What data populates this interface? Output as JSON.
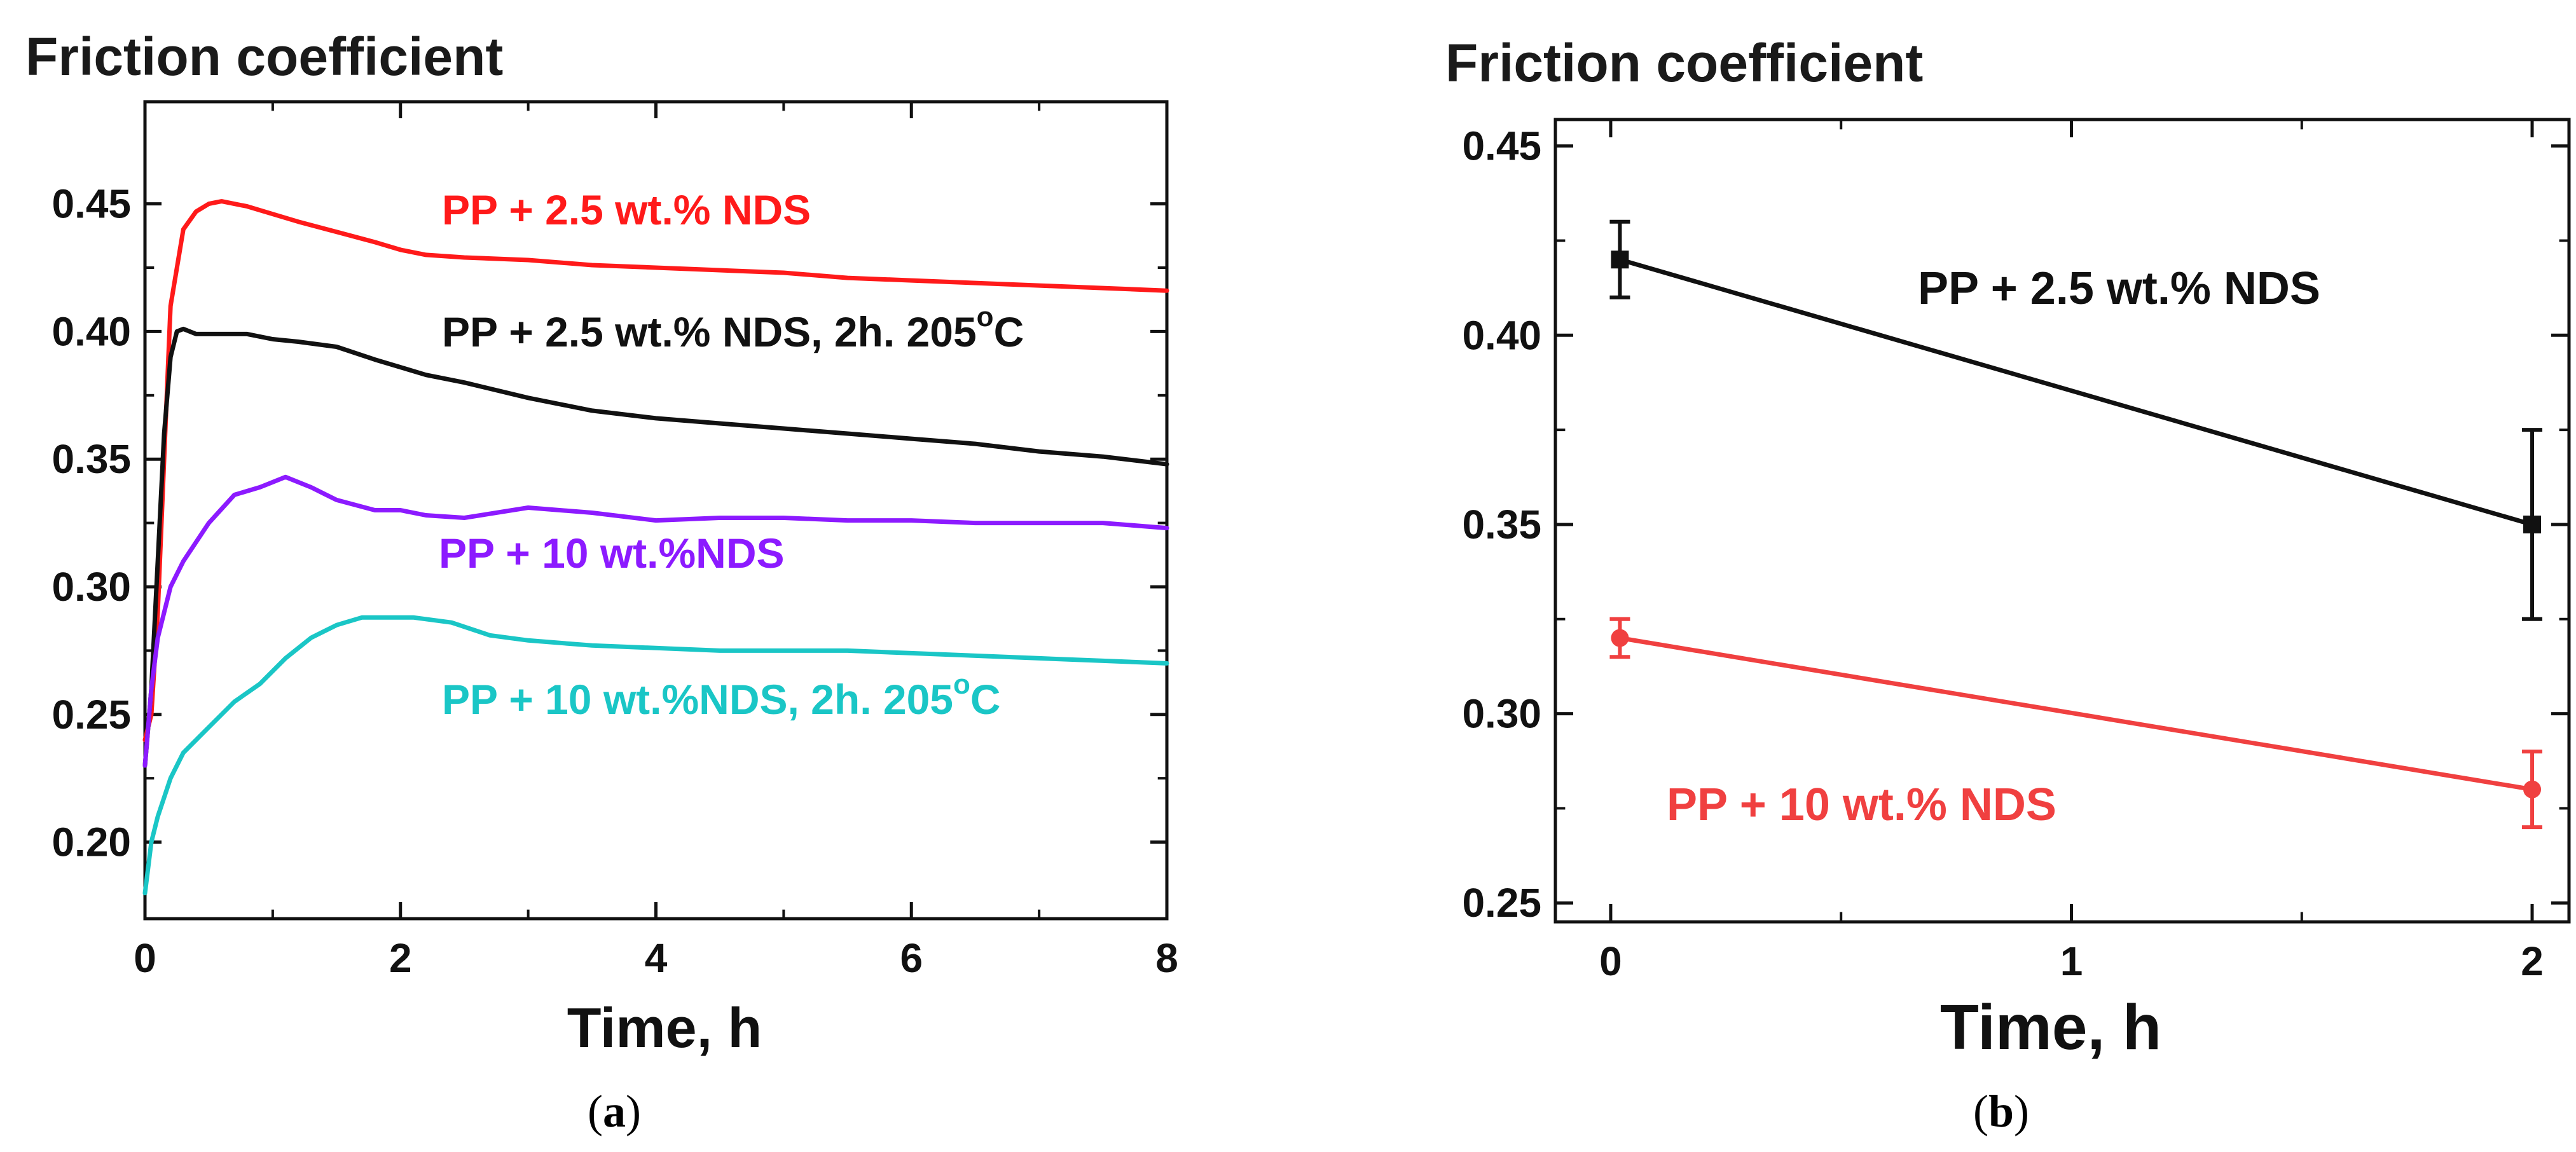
{
  "chart_data": [
    {
      "panel": "a",
      "type": "line",
      "title": "Friction coefficient",
      "ylabel": "",
      "xlabel": "Time, h",
      "xlim": [
        0,
        8
      ],
      "ylim": [
        0.17,
        0.49
      ],
      "xticks": [
        0,
        2,
        4,
        6,
        8
      ],
      "yticks": [
        0.2,
        0.25,
        0.3,
        0.35,
        0.4,
        0.45
      ],
      "ytick_labels": [
        "0.20",
        "0.25",
        "0.30",
        "0.35",
        "0.40",
        "0.45"
      ],
      "xtick_labels": [
        "0",
        "2",
        "4",
        "6",
        "8"
      ],
      "caption": "a",
      "series": [
        {
          "name": "PP + 2.5 wt.% NDS",
          "color": "#ff1a1a",
          "x": [
            0,
            0.05,
            0.1,
            0.15,
            0.2,
            0.3,
            0.4,
            0.5,
            0.6,
            0.8,
            1.0,
            1.2,
            1.5,
            1.8,
            2.0,
            2.2,
            2.5,
            3.0,
            3.5,
            4.0,
            4.5,
            5.0,
            5.5,
            6.0,
            6.5,
            7.0,
            7.5,
            8.0
          ],
          "y": [
            0.24,
            0.25,
            0.29,
            0.35,
            0.41,
            0.44,
            0.447,
            0.45,
            0.451,
            0.449,
            0.446,
            0.443,
            0.439,
            0.435,
            0.432,
            0.43,
            0.429,
            0.428,
            0.426,
            0.425,
            0.424,
            0.423,
            0.421,
            0.42,
            0.419,
            0.418,
            0.417,
            0.416
          ]
        },
        {
          "name": "PP + 2.5 wt.% NDS, 2h. 205°C",
          "color": "#111111",
          "x": [
            0,
            0.05,
            0.1,
            0.15,
            0.2,
            0.25,
            0.3,
            0.4,
            0.6,
            0.8,
            1.0,
            1.2,
            1.5,
            1.8,
            2.0,
            2.2,
            2.5,
            3.0,
            3.5,
            4.0,
            4.5,
            5.0,
            5.5,
            6.0,
            6.5,
            7.0,
            7.5,
            8.0
          ],
          "y": [
            0.23,
            0.26,
            0.31,
            0.36,
            0.39,
            0.4,
            0.401,
            0.399,
            0.399,
            0.399,
            0.397,
            0.396,
            0.394,
            0.389,
            0.386,
            0.383,
            0.38,
            0.374,
            0.369,
            0.366,
            0.364,
            0.362,
            0.36,
            0.358,
            0.356,
            0.353,
            0.351,
            0.348
          ]
        },
        {
          "name": "PP + 10 wt.%NDS",
          "color": "#8c1aff",
          "x": [
            0,
            0.05,
            0.1,
            0.2,
            0.3,
            0.5,
            0.7,
            0.9,
            1.1,
            1.3,
            1.5,
            1.8,
            2.0,
            2.2,
            2.5,
            3.0,
            3.5,
            4.0,
            4.5,
            5.0,
            5.5,
            6.0,
            6.5,
            7.0,
            7.5,
            8.0
          ],
          "y": [
            0.23,
            0.26,
            0.28,
            0.3,
            0.31,
            0.325,
            0.336,
            0.339,
            0.343,
            0.339,
            0.334,
            0.33,
            0.33,
            0.328,
            0.327,
            0.331,
            0.329,
            0.326,
            0.327,
            0.327,
            0.326,
            0.326,
            0.325,
            0.325,
            0.325,
            0.323
          ]
        },
        {
          "name": "PP + 10 wt.%NDS, 2h. 205°C",
          "color": "#1ac6c6",
          "x": [
            0,
            0.05,
            0.1,
            0.2,
            0.3,
            0.5,
            0.7,
            0.9,
            1.1,
            1.3,
            1.5,
            1.7,
            1.9,
            2.1,
            2.4,
            2.7,
            3.0,
            3.5,
            4.0,
            4.5,
            5.0,
            5.5,
            6.0,
            6.5,
            7.0,
            7.5,
            8.0
          ],
          "y": [
            0.18,
            0.2,
            0.21,
            0.225,
            0.235,
            0.245,
            0.255,
            0.262,
            0.272,
            0.28,
            0.285,
            0.288,
            0.288,
            0.288,
            0.286,
            0.281,
            0.279,
            0.277,
            0.276,
            0.275,
            0.275,
            0.275,
            0.274,
            0.273,
            0.272,
            0.271,
            0.27
          ]
        }
      ],
      "labels": [
        {
          "text": "PP + 2.5 wt.% NDS",
          "color": "#ff1a1a"
        },
        {
          "text": "PP + 2.5 wt.% NDS, 2h. 205",
          "sup": "o",
          "tail": "C",
          "color": "#111111"
        },
        {
          "text": "PP + 10 wt.%NDS",
          "color": "#8c1aff"
        },
        {
          "text": "PP + 10 wt.%NDS, 2h. 205",
          "sup": "o",
          "tail": "C",
          "color": "#1ac6c6"
        }
      ]
    },
    {
      "panel": "b",
      "type": "line",
      "title": "Friction coefficient",
      "ylabel": "",
      "xlabel": "Time, h",
      "xlim": [
        -0.12,
        2.08
      ],
      "ylim": [
        0.245,
        0.457
      ],
      "xticks": [
        0,
        1,
        2
      ],
      "yticks": [
        0.25,
        0.3,
        0.35,
        0.4,
        0.45
      ],
      "ytick_labels": [
        "0.25",
        "0.30",
        "0.35",
        "0.40",
        "0.45"
      ],
      "xtick_labels": [
        "0",
        "1",
        "2"
      ],
      "caption": "b",
      "series": [
        {
          "name": "PP + 2.5 wt.% NDS",
          "color": "#111111",
          "x": [
            0.02,
            2.0
          ],
          "y": [
            0.42,
            0.35
          ],
          "yerr": [
            0.01,
            0.025
          ],
          "marker": "square"
        },
        {
          "name": "PP + 10 wt.% NDS",
          "color": "#f04040",
          "x": [
            0.02,
            2.0
          ],
          "y": [
            0.32,
            0.28
          ],
          "yerr": [
            0.005,
            0.01
          ],
          "marker": "circle"
        }
      ],
      "labels": [
        {
          "text": "PP + 2.5 wt.% NDS",
          "color": "#111111"
        },
        {
          "text": "PP + 10 wt.% NDS",
          "color": "#f04040"
        }
      ]
    }
  ]
}
